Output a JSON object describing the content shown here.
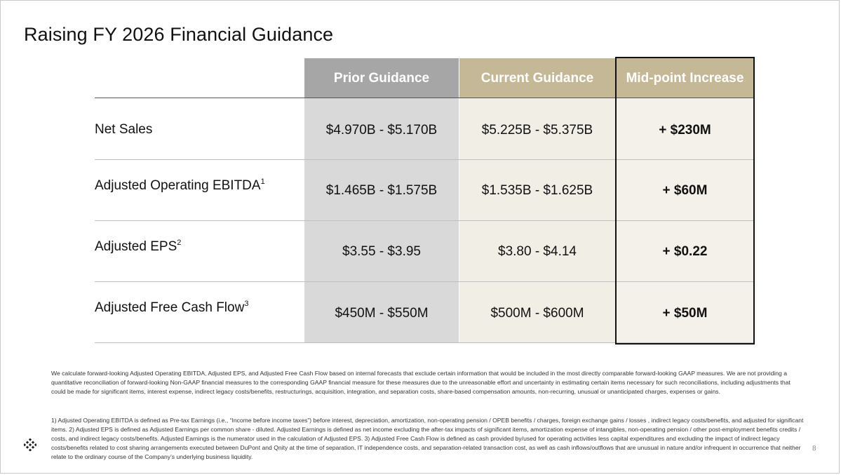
{
  "slide": {
    "title": "Raising FY 2026 Financial Guidance",
    "page_number": "8"
  },
  "table": {
    "headers": {
      "prior": "Prior Guidance",
      "current": "Current Guidance",
      "mid": "Mid-point Increase"
    },
    "colors": {
      "prior_header": "#a6a6a6",
      "current_header": "#c5b897",
      "prior_band": "#d9d9d9",
      "current_band": "#f1eee6"
    },
    "rows": [
      {
        "label": "Net Sales",
        "sup": "",
        "prior": "$4.970B - $5.170B",
        "current": "$5.225B - $5.375B",
        "mid": "+ $230M"
      },
      {
        "label": "Adjusted Operating EBITDA",
        "sup": "1",
        "prior": "$1.465B - $1.575B",
        "current": "$1.535B - $1.625B",
        "mid": "+ $60M"
      },
      {
        "label": "Adjusted EPS",
        "sup": "2",
        "prior": "$3.55 - $3.95",
        "current": "$3.80 - $4.14",
        "mid": "+ $0.22"
      },
      {
        "label": "Adjusted Free Cash Flow",
        "sup": "3",
        "prior": "$450M - $550M",
        "current": "$500M - $600M",
        "mid": "+ $50M"
      }
    ]
  },
  "footnotes": {
    "intro": "We calculate forward-looking Adjusted Operating EBITDA, Adjusted EPS, and Adjusted Free Cash Flow based on internal forecasts that exclude certain information that would be included in the most directly comparable forward-looking GAAP measures. We are not providing a quantitative reconciliation of forward-looking Non-GAAP financial measures to the corresponding GAAP financial measure for these measures due to the unreasonable effort and uncertainty in estimating certain items necessary for such reconciliations, including adjustments that could be made for significant items, interest expense, indirect legacy costs/benefits, restructurings, acquisition, integration, and separation costs, share-based compensation amounts, non-recurring, unusual or unanticipated charges, expenses or gains.",
    "definitions": "1) Adjusted Operating EBITDA is defined as Pre-tax Earnings (i.e., “Income before income taxes”) before interest, depreciation, amortization, non-operating pension / OPEB benefits / charges, foreign exchange gains / losses , indirect legacy costs/benefits, and adjusted for significant items. 2) Adjusted EPS is defined as Adjusted Earnings per common share - diluted.  Adjusted Earnings is defined as net income excluding the after-tax impacts of significant items, amortization expense of intangibles, non-operating pension / other post-employment benefits credits / costs, and indirect legacy costs/benefits. Adjusted Earnings is the numerator used in the calculation of Adjusted EPS. 3) Adjusted Free Cash Flow is defined as cash provided by/used for operating activities less capital expenditures and excluding the impact of indirect legacy costs/benefits related to cost sharing arrangements executed between DuPont and Qnity at the time of separation, IT independence costs, and separation-related transaction cost, as well as cash inflows/outflows that are unusual in nature and/or infrequent in occurrence that neither relate to the ordinary course of the Company’s underlying business liquidity."
  },
  "logo": {
    "icon": "checkered-diamond-logo-icon"
  }
}
